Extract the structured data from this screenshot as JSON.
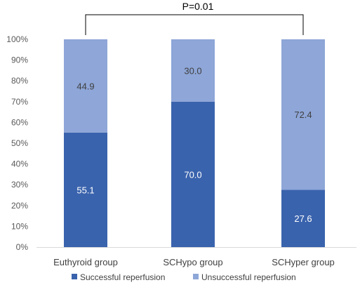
{
  "chart_data": {
    "type": "bar",
    "stacked": true,
    "categories": [
      "Euthyroid group",
      "SCHypo group",
      "SCHyper group"
    ],
    "series": [
      {
        "name": "Successful reperfusion",
        "values": [
          55.1,
          70.0,
          27.6
        ],
        "labels": [
          "55.1",
          "70.0",
          "27.6"
        ],
        "color": "#3a63ad"
      },
      {
        "name": "Unsuccessful reperfusion",
        "values": [
          44.9,
          30.0,
          72.4
        ],
        "labels": [
          "44.9",
          "30.0",
          "72.4"
        ],
        "color": "#8ea6d8"
      }
    ],
    "yticks": [
      "0%",
      "10%",
      "20%",
      "30%",
      "40%",
      "50%",
      "60%",
      "70%",
      "80%",
      "90%",
      "100%"
    ],
    "ylim": [
      0,
      100
    ],
    "grid": false,
    "legend": "bottom",
    "annotation": {
      "text": "P=0.01",
      "from_category": "Euthyroid group",
      "to_category": "SCHyper group"
    }
  }
}
